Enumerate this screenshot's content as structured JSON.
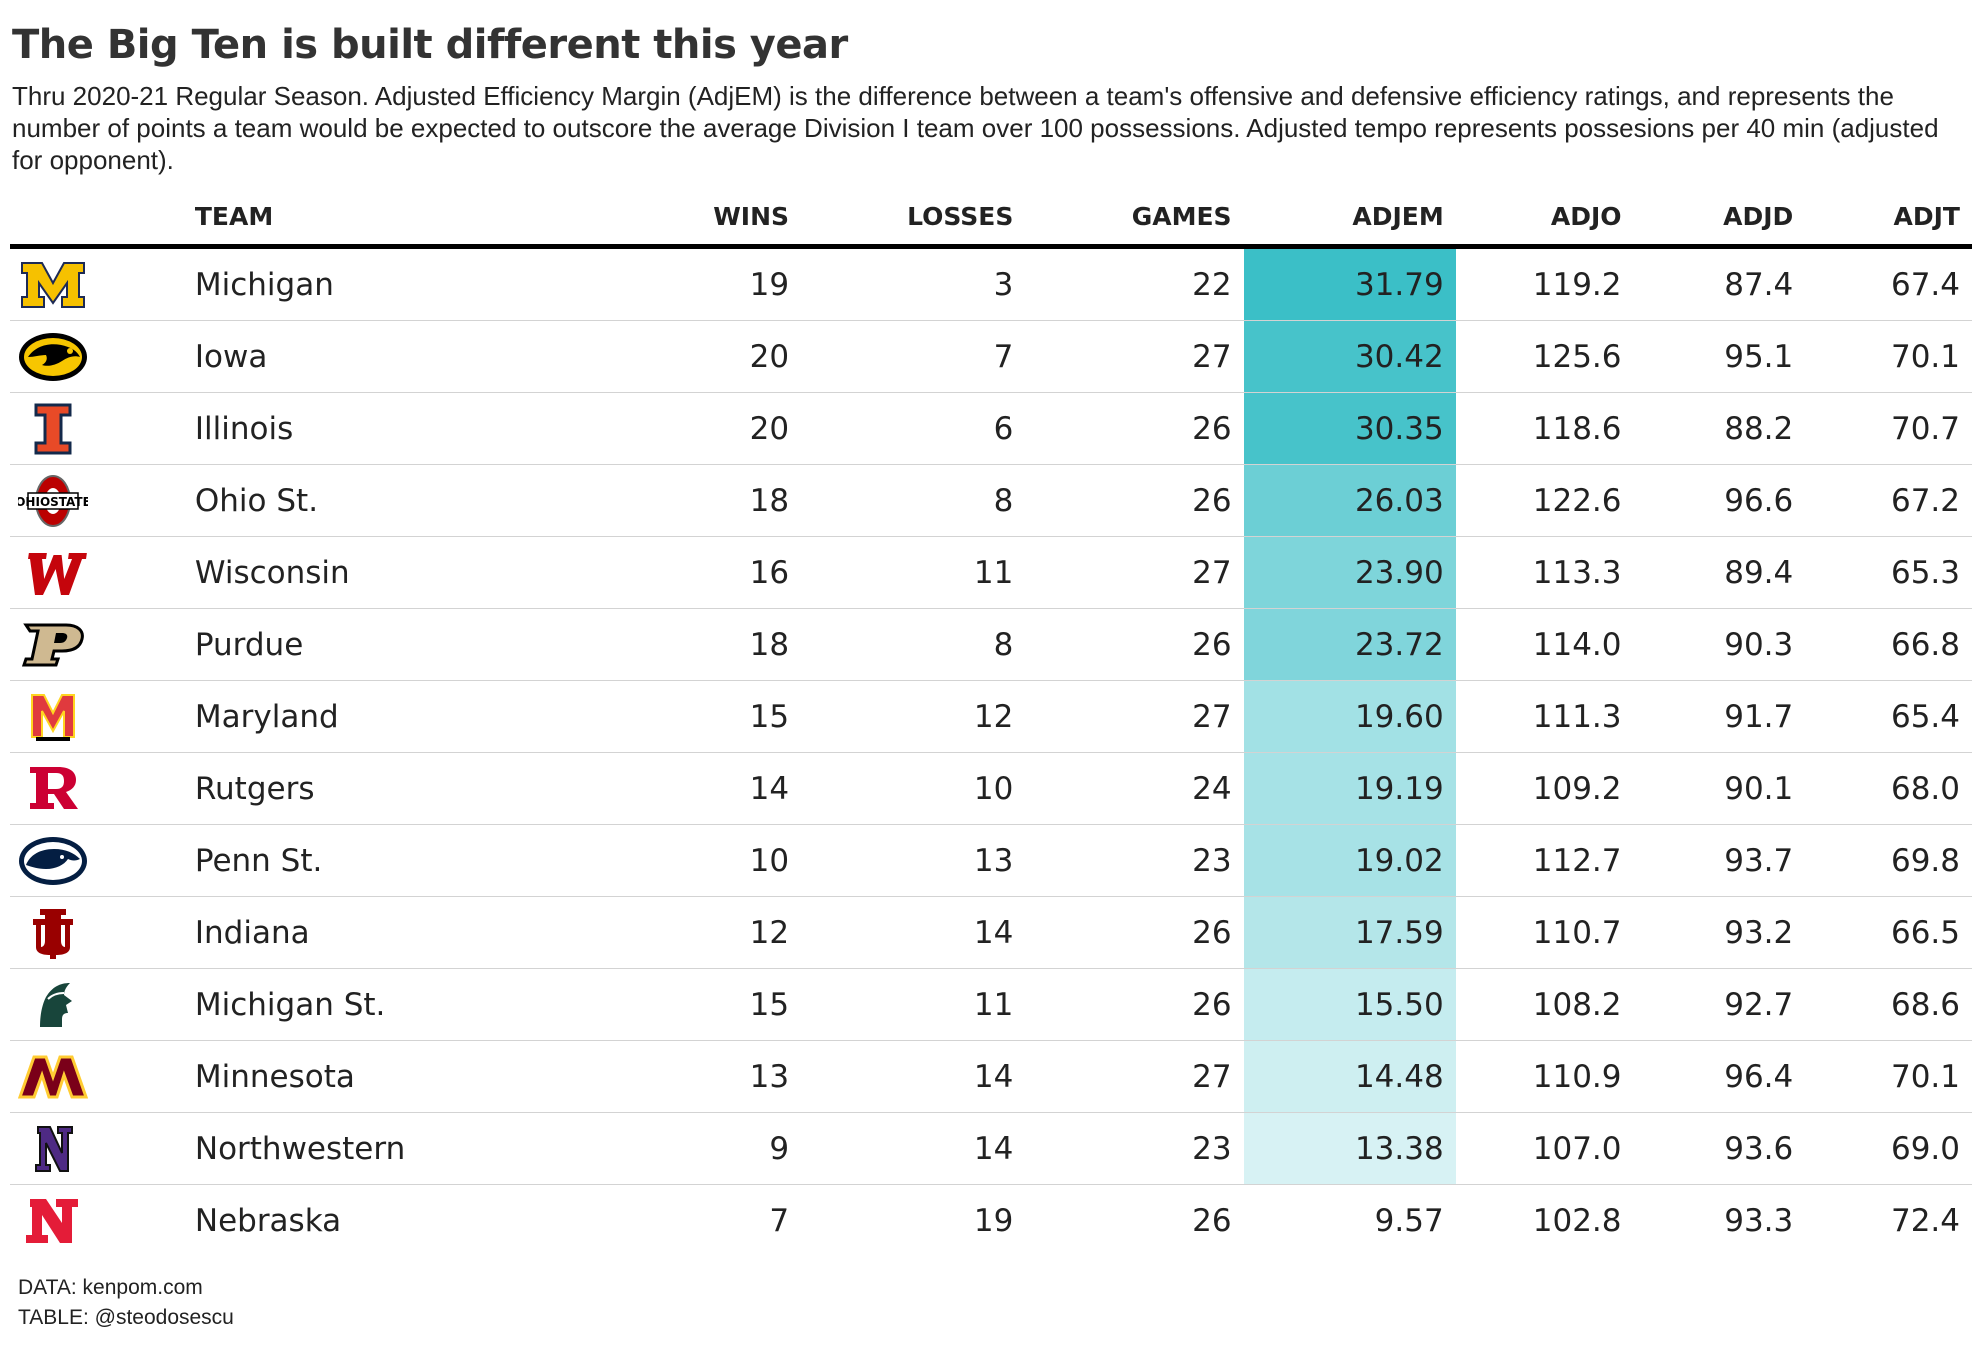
{
  "title": "The Big Ten is built different this year",
  "subtitle": "Thru 2020-21 Regular Season. Adjusted Efficiency Margin (AdjEM) is the difference between a team's offensive and defensive efficiency ratings, and represents the number of points a team would be expected to outscore the average Division I team over 100 possessions. Adjusted tempo represents possesions per 40 min (adjusted for opponent).",
  "footer": {
    "data": "DATA: kenpom.com",
    "table": "TABLE: @steodosescu"
  },
  "colors": {
    "adjem_high": "#3bbfc7",
    "adjem_low": "#e3f6f7",
    "rule": "#000000",
    "row_border": "#d3d3d3"
  },
  "chart_data": {
    "type": "table",
    "columns": [
      "TEAM",
      "WINS",
      "LOSSES",
      "GAMES",
      "ADJEM",
      "ADJO",
      "ADJD",
      "ADJT"
    ],
    "rows": [
      {
        "team": "Michigan",
        "logo": "michigan-logo",
        "wins": "19",
        "losses": "3",
        "games": "22",
        "adjem": "31.79",
        "adjo": "119.2",
        "adjd": "87.4",
        "adjt": "67.4"
      },
      {
        "team": "Iowa",
        "logo": "iowa-logo",
        "wins": "20",
        "losses": "7",
        "games": "27",
        "adjem": "30.42",
        "adjo": "125.6",
        "adjd": "95.1",
        "adjt": "70.1"
      },
      {
        "team": "Illinois",
        "logo": "illinois-logo",
        "wins": "20",
        "losses": "6",
        "games": "26",
        "adjem": "30.35",
        "adjo": "118.6",
        "adjd": "88.2",
        "adjt": "70.7"
      },
      {
        "team": "Ohio St.",
        "logo": "ohio-state-logo",
        "wins": "18",
        "losses": "8",
        "games": "26",
        "adjem": "26.03",
        "adjo": "122.6",
        "adjd": "96.6",
        "adjt": "67.2"
      },
      {
        "team": "Wisconsin",
        "logo": "wisconsin-logo",
        "wins": "16",
        "losses": "11",
        "games": "27",
        "adjem": "23.90",
        "adjo": "113.3",
        "adjd": "89.4",
        "adjt": "65.3"
      },
      {
        "team": "Purdue",
        "logo": "purdue-logo",
        "wins": "18",
        "losses": "8",
        "games": "26",
        "adjem": "23.72",
        "adjo": "114.0",
        "adjd": "90.3",
        "adjt": "66.8"
      },
      {
        "team": "Maryland",
        "logo": "maryland-logo",
        "wins": "15",
        "losses": "12",
        "games": "27",
        "adjem": "19.60",
        "adjo": "111.3",
        "adjd": "91.7",
        "adjt": "65.4"
      },
      {
        "team": "Rutgers",
        "logo": "rutgers-logo",
        "wins": "14",
        "losses": "10",
        "games": "24",
        "adjem": "19.19",
        "adjo": "109.2",
        "adjd": "90.1",
        "adjt": "68.0"
      },
      {
        "team": "Penn St.",
        "logo": "penn-state-logo",
        "wins": "10",
        "losses": "13",
        "games": "23",
        "adjem": "19.02",
        "adjo": "112.7",
        "adjd": "93.7",
        "adjt": "69.8"
      },
      {
        "team": "Indiana",
        "logo": "indiana-logo",
        "wins": "12",
        "losses": "14",
        "games": "26",
        "adjem": "17.59",
        "adjo": "110.7",
        "adjd": "93.2",
        "adjt": "66.5"
      },
      {
        "team": "Michigan St.",
        "logo": "michigan-state-logo",
        "wins": "15",
        "losses": "11",
        "games": "26",
        "adjem": "15.50",
        "adjo": "108.2",
        "adjd": "92.7",
        "adjt": "68.6"
      },
      {
        "team": "Minnesota",
        "logo": "minnesota-logo",
        "wins": "13",
        "losses": "14",
        "games": "27",
        "adjem": "14.48",
        "adjo": "110.9",
        "adjd": "96.4",
        "adjt": "70.1"
      },
      {
        "team": "Northwestern",
        "logo": "northwestern-logo",
        "wins": "9",
        "losses": "14",
        "games": "23",
        "adjem": "13.38",
        "adjo": "107.0",
        "adjd": "93.6",
        "adjt": "69.0"
      },
      {
        "team": "Nebraska",
        "logo": "nebraska-logo",
        "wins": "7",
        "losses": "19",
        "games": "26",
        "adjem": "9.57",
        "adjo": "102.8",
        "adjd": "93.3",
        "adjt": "72.4"
      }
    ]
  }
}
